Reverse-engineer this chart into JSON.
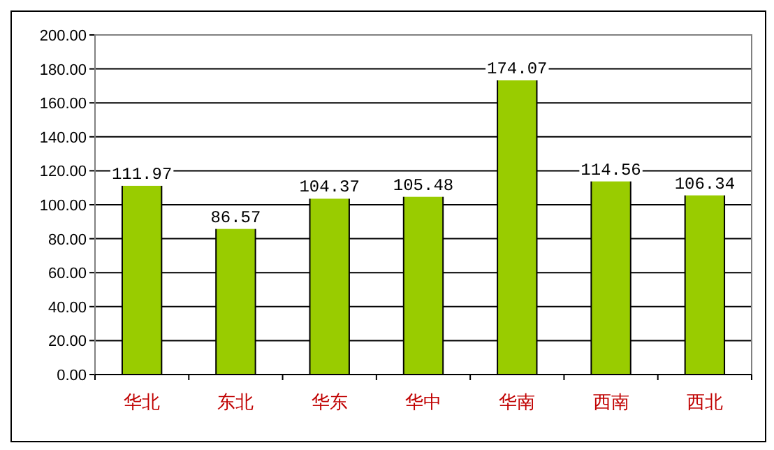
{
  "chart_data": {
    "type": "bar",
    "categories": [
      "华北",
      "东北",
      "华东",
      "华中",
      "华南",
      "西南",
      "西北"
    ],
    "values": [
      111.97,
      86.57,
      104.37,
      105.48,
      174.07,
      114.56,
      106.34
    ],
    "color": "#99cc00",
    "ylim": [
      0,
      200
    ],
    "yticks": [
      {
        "value": 0,
        "label": "0.00"
      },
      {
        "value": 20,
        "label": "20.00"
      },
      {
        "value": 40,
        "label": "40.00"
      },
      {
        "value": 60,
        "label": "60.00"
      },
      {
        "value": 80,
        "label": "80.00"
      },
      {
        "value": 100,
        "label": "100.00"
      },
      {
        "value": 120,
        "label": "120.00"
      },
      {
        "value": 140,
        "label": "140.00"
      },
      {
        "value": 160,
        "label": "160.00"
      },
      {
        "value": 180,
        "label": "180.00"
      },
      {
        "value": 200,
        "label": "200.00"
      }
    ],
    "grid": "y",
    "data_labels": true
  }
}
